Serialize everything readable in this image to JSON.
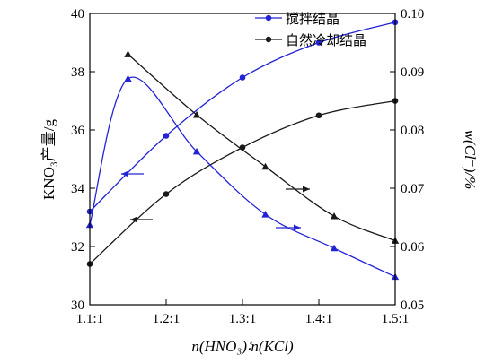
{
  "chart_data": {
    "type": "line",
    "xlabel": "n(HNO₃)∶n(KCl)",
    "ylabel_left": "KNO₃产量/g",
    "ylabel_right": "w(Cl⁻)/%",
    "x_ticks": [
      "1.1:1",
      "1.2:1",
      "1.3:1",
      "1.4:1",
      "1.5:1"
    ],
    "x_range": [
      1.1,
      1.5
    ],
    "y_left_range": [
      30,
      40
    ],
    "y_left_ticks": [
      "30",
      "32",
      "34",
      "36",
      "38",
      "40"
    ],
    "y_right_range": [
      0.05,
      0.1
    ],
    "y_right_ticks": [
      "0.05",
      "0.06",
      "0.07",
      "0.08",
      "0.09",
      "0.10"
    ],
    "colors": {
      "series_blue": "#2323d6",
      "series_black": "#1a1a1a",
      "axis": "#000000"
    },
    "series": [
      {
        "name": "搅拌结晶",
        "axis": "left",
        "marker": "circle",
        "color": "#2323d6",
        "x": [
          1.1,
          1.2,
          1.3,
          1.4,
          1.5
        ],
        "y": [
          33.2,
          35.8,
          37.8,
          39.0,
          39.7
        ]
      },
      {
        "name": "自然冷却结晶",
        "axis": "left",
        "marker": "circle",
        "color": "#1a1a1a",
        "x": [
          1.1,
          1.2,
          1.3,
          1.4,
          1.5
        ],
        "y": [
          31.4,
          33.8,
          35.4,
          36.5,
          37.0
        ]
      },
      {
        "name": "",
        "axis": "right",
        "marker": "triangle",
        "color": "#2323d6",
        "x": [
          1.1,
          1.15,
          1.24,
          1.33,
          1.42,
          1.5
        ],
        "y": [
          0.0637,
          0.0888,
          0.0763,
          0.0655,
          0.0597,
          0.0548
        ]
      },
      {
        "name": "",
        "axis": "right",
        "marker": "triangle",
        "color": "#1a1a1a",
        "x": [
          1.15,
          1.24,
          1.33,
          1.42,
          1.5
        ],
        "y": [
          0.093,
          0.0826,
          0.0737,
          0.0652,
          0.061
        ]
      }
    ],
    "legend": {
      "placement": "top-right",
      "entries": [
        {
          "label": "搅拌结晶",
          "marker": "circle",
          "color": "#2323d6"
        },
        {
          "label": "自然冷却结晶",
          "marker": "triangle",
          "color": "#1a1a1a"
        }
      ]
    },
    "annotations": [
      {
        "type": "arrow",
        "direction": "left",
        "color": "#2323d6",
        "meaning": "blue circles read on left axis"
      },
      {
        "type": "arrow",
        "direction": "left",
        "color": "#1a1a1a",
        "meaning": "black circles read on left axis"
      },
      {
        "type": "arrow",
        "direction": "right",
        "color": "#2323d6",
        "meaning": "blue triangles read on right axis"
      },
      {
        "type": "arrow",
        "direction": "right",
        "color": "#1a1a1a",
        "meaning": "black triangles read on right axis"
      }
    ],
    "grid": false
  }
}
